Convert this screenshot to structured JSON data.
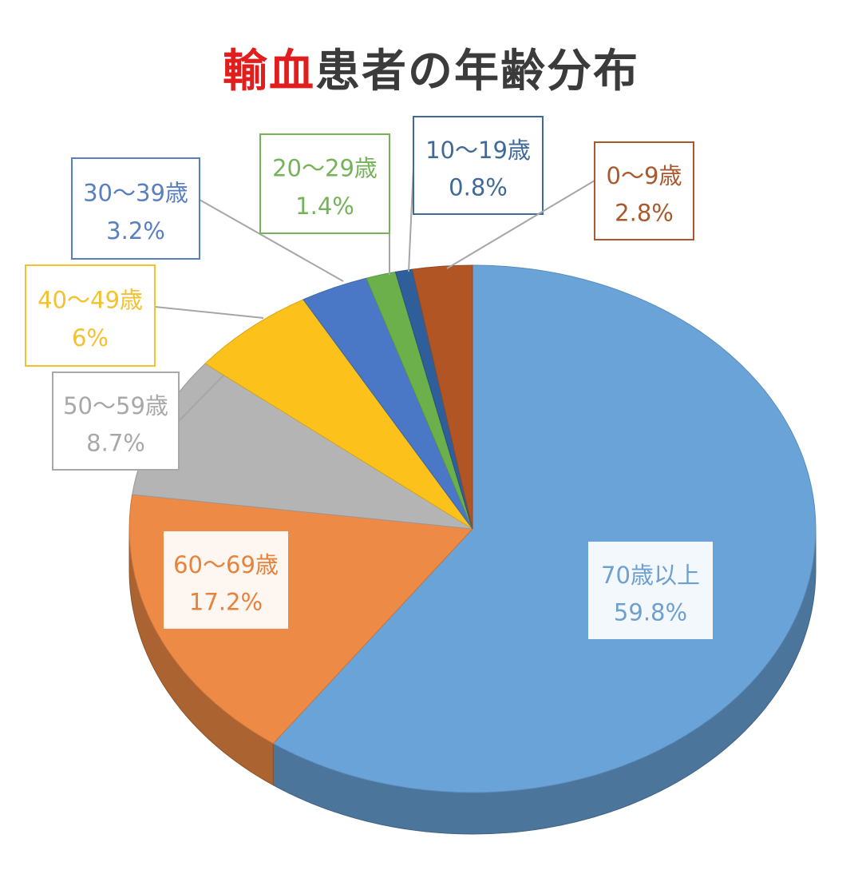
{
  "title": {
    "accent": "輸血",
    "rest": "患者の年齢分布",
    "accent_color": "#e01e1e",
    "rest_color": "#3b3b3b"
  },
  "chart_data": {
    "type": "pie",
    "style": "3d",
    "categories": [
      "70歳以上",
      "60〜69歳",
      "50〜59歳",
      "40〜49歳",
      "30〜39歳",
      "20〜29歳",
      "10〜19歳",
      "0〜9歳"
    ],
    "values": [
      59.8,
      17.2,
      8.7,
      6,
      3.2,
      1.4,
      0.8,
      2.8
    ],
    "value_labels": [
      "59.8%",
      "17.2%",
      "8.7%",
      "6%",
      "3.2%",
      "1.4%",
      "0.8%",
      "2.8%"
    ],
    "colors": [
      "#6aa3d8",
      "#ed8a45",
      "#b4b4b4",
      "#fcc21b",
      "#4a78c6",
      "#6cb04b",
      "#2f5f9a",
      "#b25525"
    ],
    "label_colors": [
      "#6f9fcf",
      "#e8823a",
      "#a8a8a8",
      "#f4c22e",
      "#5a7fc0",
      "#76b25a",
      "#3f6a98",
      "#a9592d"
    ],
    "legend": "none"
  }
}
